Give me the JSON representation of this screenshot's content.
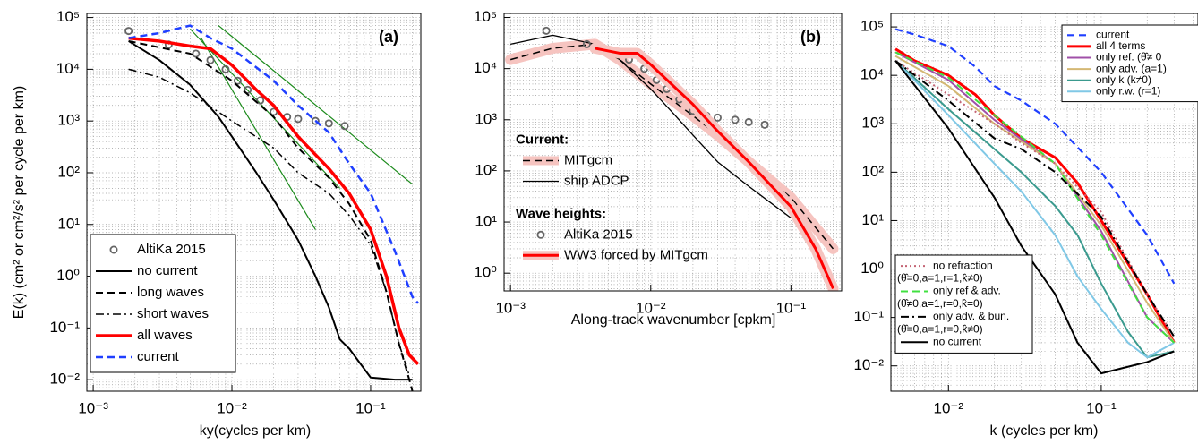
{
  "chart_data": [
    {
      "type": "line",
      "annotation": "(a)",
      "x_label": "ky(cycles per km)",
      "y_label": "E(k)    (cm² or cm²/s² per cycle per km)",
      "log_x": true,
      "log_y": true,
      "grid": true,
      "minor_grid": true,
      "xlim": [
        0.0009,
        0.23
      ],
      "ylim": [
        0.006,
        120000
      ],
      "xticks": [
        {
          "value": 0.001,
          "label": "10⁻³"
        },
        {
          "value": 0.01,
          "label": "10⁻²"
        },
        {
          "value": 0.1,
          "label": "10⁻¹"
        }
      ],
      "yticks": [
        {
          "value": 0.01,
          "label": "10⁻²"
        },
        {
          "value": 0.1,
          "label": "10⁻¹"
        },
        {
          "value": 1,
          "label": "10⁰"
        },
        {
          "value": 10,
          "label": "10¹"
        },
        {
          "value": 100,
          "label": "10²"
        },
        {
          "value": 1000,
          "label": "10³"
        },
        {
          "value": 10000,
          "label": "10⁴"
        },
        {
          "value": 100000,
          "label": "10⁵"
        }
      ],
      "series": [
        {
          "color": "#1a8a1a",
          "dash": "solid",
          "linewidth": 1.2,
          "x": [
            0.008,
            0.2
          ],
          "values": [
            70000,
            60
          ]
        },
        {
          "color": "#1a8a1a",
          "dash": "solid",
          "linewidth": 1.2,
          "x": [
            0.005,
            0.06
          ],
          "values": [
            60000,
            50
          ]
        },
        {
          "color": "#1a8a1a",
          "dash": "solid",
          "linewidth": 1.2,
          "x": [
            0.006,
            0.04
          ],
          "values": [
            40000,
            8
          ]
        },
        {
          "name": "AltiKa 2015",
          "legend": "lower left",
          "color": "#666666",
          "marker": "circle",
          "x": [
            0.0018,
            0.0035,
            0.0055,
            0.007,
            0.009,
            0.011,
            0.013,
            0.016,
            0.02,
            0.025,
            0.03,
            0.04,
            0.05,
            0.065
          ],
          "values": [
            55000,
            30000,
            20000,
            15000,
            10000,
            6000,
            4000,
            2500,
            1500,
            1200,
            1100,
            1000,
            900,
            800
          ]
        },
        {
          "name": "no current",
          "legend": "lower left",
          "color": "#000000",
          "dash": "solid",
          "linewidth": 2,
          "x": [
            0.0018,
            0.003,
            0.005,
            0.008,
            0.01,
            0.015,
            0.02,
            0.03,
            0.04,
            0.05,
            0.06,
            0.07,
            0.1,
            0.15,
            0.2
          ],
          "values": [
            35000,
            15000,
            5000,
            1200,
            500,
            100,
            30,
            5,
            1,
            0.25,
            0.06,
            0.04,
            0.011,
            0.01,
            0.01
          ]
        },
        {
          "name": "long waves",
          "legend": "lower left",
          "color": "#000000",
          "dash": "dashed",
          "linewidth": 2,
          "x": [
            0.0018,
            0.005,
            0.01,
            0.02,
            0.03,
            0.05,
            0.07,
            0.1,
            0.13,
            0.16,
            0.19,
            0.2
          ],
          "values": [
            35000,
            20000,
            6000,
            1200,
            300,
            80,
            25,
            5,
            0.5,
            0.05,
            0.01,
            0.006
          ]
        },
        {
          "name": "short waves",
          "legend": "lower left",
          "color": "#000000",
          "dash": "dashdot",
          "linewidth": 1.5,
          "x": [
            0.0018,
            0.003,
            0.005,
            0.01,
            0.02,
            0.03,
            0.05,
            0.07,
            0.1,
            0.13,
            0.16,
            0.19
          ],
          "values": [
            10000,
            7000,
            3500,
            1000,
            300,
            100,
            40,
            15,
            4,
            0.5,
            0.05,
            0.012
          ]
        },
        {
          "name": "all waves",
          "legend": "lower left",
          "color": "#ff0000",
          "dash": "solid",
          "linewidth": 3.5,
          "x": [
            0.0018,
            0.003,
            0.005,
            0.007,
            0.01,
            0.015,
            0.02,
            0.03,
            0.05,
            0.07,
            0.1,
            0.13,
            0.16,
            0.19,
            0.22
          ],
          "values": [
            40000,
            35000,
            28000,
            25000,
            12000,
            4000,
            2000,
            500,
            120,
            40,
            8,
            1,
            0.1,
            0.03,
            0.02
          ]
        },
        {
          "name": "current",
          "legend": "lower left",
          "color": "#1f3fff",
          "dash": "dashed",
          "linewidth": 2.5,
          "x": [
            0.0018,
            0.003,
            0.005,
            0.007,
            0.01,
            0.02,
            0.03,
            0.05,
            0.07,
            0.1,
            0.15,
            0.2,
            0.22
          ],
          "values": [
            40000,
            50000,
            70000,
            40000,
            25000,
            6000,
            2000,
            600,
            150,
            40,
            3,
            0.4,
            0.3
          ]
        }
      ]
    },
    {
      "type": "line",
      "annotation": "(b)",
      "x_label": "Along-track wavenumber [cpkm]",
      "log_x": true,
      "log_y": true,
      "grid": true,
      "minor_grid": true,
      "xlim": [
        0.0009,
        0.23
      ],
      "ylim": [
        0.45,
        120000
      ],
      "xticks": [
        {
          "value": 0.001,
          "label": "10⁻³"
        },
        {
          "value": 0.01,
          "label": "10⁻²"
        },
        {
          "value": 0.1,
          "label": "10⁻¹"
        }
      ],
      "yticks": [
        {
          "value": 1,
          "label": "10⁰"
        },
        {
          "value": 10,
          "label": "10¹"
        },
        {
          "value": 100,
          "label": "10²"
        },
        {
          "value": 1000,
          "label": "10³"
        },
        {
          "value": 10000,
          "label": "10⁴"
        },
        {
          "value": 100000,
          "label": "10⁵"
        }
      ],
      "series": [
        {
          "name": "MITgcm",
          "group": "Current:",
          "legend": "center left",
          "color": "#000000",
          "band_color": "#f6c4c0",
          "dash": "dashed",
          "linewidth": 1.5,
          "x": [
            0.001,
            0.002,
            0.004,
            0.006,
            0.01,
            0.02,
            0.03,
            0.05,
            0.1,
            0.2
          ],
          "values": [
            15000,
            25000,
            30000,
            15000,
            5000,
            1200,
            500,
            150,
            30,
            3
          ]
        },
        {
          "name": "ship ADCP",
          "group": "Current:",
          "legend": "center left",
          "color": "#000000",
          "dash": "solid",
          "linewidth": 1.3,
          "x": [
            0.001,
            0.002,
            0.004,
            0.006,
            0.01,
            0.015,
            0.02,
            0.03,
            0.05,
            0.07,
            0.1
          ],
          "values": [
            30000,
            45000,
            30000,
            15000,
            4000,
            1200,
            500,
            150,
            50,
            25,
            12
          ]
        },
        {
          "name": "AltiKa 2015",
          "group": "Wave heights:",
          "legend": "center left",
          "color": "#666666",
          "marker": "circle",
          "x": [
            0.0018,
            0.0035,
            0.0055,
            0.007,
            0.009,
            0.011,
            0.013,
            0.016,
            0.02,
            0.025,
            0.03,
            0.04,
            0.05,
            0.065
          ],
          "values": [
            55000,
            30000,
            20000,
            15000,
            10000,
            6000,
            4000,
            2500,
            1500,
            1200,
            1100,
            1000,
            900,
            800
          ]
        },
        {
          "name": "WW3 forced by MITgcm",
          "group": "Wave heights:",
          "legend": "center left",
          "color": "#ff0000",
          "band_color": "#f6c4c0",
          "dash": "solid",
          "linewidth": 3,
          "x": [
            0.004,
            0.006,
            0.008,
            0.01,
            0.02,
            0.03,
            0.05,
            0.1,
            0.15,
            0.2
          ],
          "values": [
            25000,
            20000,
            20000,
            12000,
            2000,
            600,
            150,
            20,
            3,
            0.5
          ]
        }
      ]
    },
    {
      "type": "line",
      "annotation": "(c)",
      "x_label": "k (cycles per km)",
      "log_x": true,
      "log_y": true,
      "grid": true,
      "minor_grid": true,
      "xlim": [
        0.0042,
        0.43
      ],
      "ylim": [
        0.003,
        190000
      ],
      "xticks": [
        {
          "value": 0.01,
          "label": "10⁻²"
        },
        {
          "value": 0.1,
          "label": "10⁻¹"
        }
      ],
      "yticks": [
        {
          "value": 0.01,
          "label": "10⁻²"
        },
        {
          "value": 0.1,
          "label": "10⁻¹"
        },
        {
          "value": 1,
          "label": "10⁰"
        },
        {
          "value": 10,
          "label": "10¹"
        },
        {
          "value": 100,
          "label": "10²"
        },
        {
          "value": 1000,
          "label": "10³"
        },
        {
          "value": 10000,
          "label": "10⁴"
        },
        {
          "value": 100000,
          "label": "10⁵"
        }
      ],
      "series": [
        {
          "name": "current",
          "legend": "upper right",
          "color": "#1f3fff",
          "dash": "dashed",
          "linewidth": 2.2,
          "x": [
            0.0045,
            0.006,
            0.01,
            0.015,
            0.02,
            0.03,
            0.05,
            0.1,
            0.2,
            0.3
          ],
          "values": [
            90000,
            70000,
            40000,
            15000,
            6000,
            3000,
            1000,
            100,
            5,
            0.5
          ]
        },
        {
          "name": "all 4 terms",
          "legend": "upper right",
          "color": "#ff0000",
          "dash": "solid",
          "linewidth": 3,
          "x": [
            0.0045,
            0.006,
            0.01,
            0.015,
            0.02,
            0.03,
            0.05,
            0.07,
            0.1,
            0.2,
            0.3
          ],
          "values": [
            35000,
            20000,
            10000,
            4000,
            1500,
            500,
            200,
            60,
            10,
            0.3,
            0.03
          ]
        },
        {
          "name": "only ref. (θ̂≠ 0",
          "legend": "upper right",
          "color": "#a050a8",
          "dash": "solid",
          "linewidth": 2,
          "x": [
            0.0045,
            0.01,
            0.02,
            0.05,
            0.1,
            0.2,
            0.3
          ],
          "values": [
            30000,
            8000,
            1200,
            150,
            6,
            0.1,
            0.03
          ]
        },
        {
          "name": "only adv. (a=1)",
          "legend": "upper right",
          "color": "#d4b874",
          "dash": "solid",
          "linewidth": 2,
          "x": [
            0.0045,
            0.01,
            0.02,
            0.05,
            0.1,
            0.2,
            0.3
          ],
          "values": [
            25000,
            6000,
            1000,
            150,
            8,
            0.2,
            0.03
          ]
        },
        {
          "name": "only k      (k≠0)",
          "legend": "upper right",
          "color": "#3a9a8e",
          "dash": "solid",
          "linewidth": 2,
          "x": [
            0.0045,
            0.01,
            0.02,
            0.03,
            0.05,
            0.07,
            0.1,
            0.15,
            0.2,
            0.3
          ],
          "values": [
            20000,
            2000,
            300,
            100,
            20,
            5,
            0.5,
            0.05,
            0.015,
            0.02
          ]
        },
        {
          "name": "only r.w.   (r=1)",
          "legend": "upper right",
          "color": "#80c8e6",
          "dash": "solid",
          "linewidth": 2,
          "x": [
            0.0045,
            0.01,
            0.02,
            0.03,
            0.05,
            0.07,
            0.1,
            0.15,
            0.2,
            0.3
          ],
          "values": [
            20000,
            1500,
            150,
            40,
            5,
            0.7,
            0.15,
            0.03,
            0.015,
            0.03
          ]
        },
        {
          "name": "no refraction",
          "note": "(θ̂=0,a=1,r=1,k̂≠0)",
          "legend": "lower left",
          "color": "#c46474",
          "dash": "dotted",
          "linewidth": 2,
          "x": [
            0.0045,
            0.01,
            0.02,
            0.03,
            0.05,
            0.1,
            0.2,
            0.3
          ],
          "values": [
            20000,
            4000,
            1000,
            400,
            150,
            15,
            0.3,
            0.04
          ]
        },
        {
          "name": "only ref & adv.",
          "note": "(θ̂≠0,a=1,r=0,k̂=0)",
          "legend": "lower left",
          "color": "#40e040",
          "dash": "dashed",
          "linewidth": 2,
          "x": [
            0.0045,
            0.01,
            0.02,
            0.05,
            0.1,
            0.2,
            0.3
          ],
          "values": [
            30000,
            9000,
            1500,
            150,
            5,
            0.1,
            0.03
          ]
        },
        {
          "name": "only adv. & bun.",
          "note": "(θ̂=0,a=1,r=0,k̂≠0)",
          "legend": "lower left",
          "color": "#000000",
          "dash": "dashdot",
          "linewidth": 2,
          "x": [
            0.0045,
            0.01,
            0.02,
            0.03,
            0.05,
            0.1,
            0.2,
            0.3
          ],
          "values": [
            20000,
            3000,
            500,
            300,
            100,
            12,
            0.3,
            0.04
          ]
        },
        {
          "name": "no current",
          "legend": "lower left",
          "color": "#000000",
          "dash": "solid",
          "linewidth": 2,
          "x": [
            0.0045,
            0.01,
            0.02,
            0.03,
            0.05,
            0.07,
            0.1,
            0.2,
            0.3
          ],
          "values": [
            20000,
            800,
            30,
            3,
            0.3,
            0.03,
            0.007,
            0.012,
            0.02
          ]
        }
      ]
    }
  ]
}
